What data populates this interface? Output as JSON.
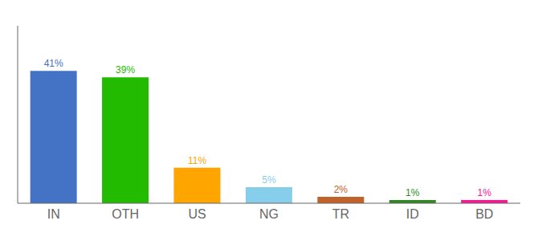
{
  "chart_data": {
    "type": "bar",
    "categories": [
      "IN",
      "OTH",
      "US",
      "NG",
      "TR",
      "ID",
      "BD"
    ],
    "values": [
      41,
      39,
      11,
      5,
      2,
      1,
      1
    ],
    "value_labels": [
      "41%",
      "39%",
      "11%",
      "5%",
      "2%",
      "1%",
      "1%"
    ],
    "colors": [
      "#4472C4",
      "#22BB00",
      "#FFA500",
      "#87CEEB",
      "#C0622A",
      "#2E8B22",
      "#FF1493"
    ],
    "ylim": [
      0,
      55
    ],
    "data_labels": true,
    "tick_labels": "x",
    "grid": false
  }
}
